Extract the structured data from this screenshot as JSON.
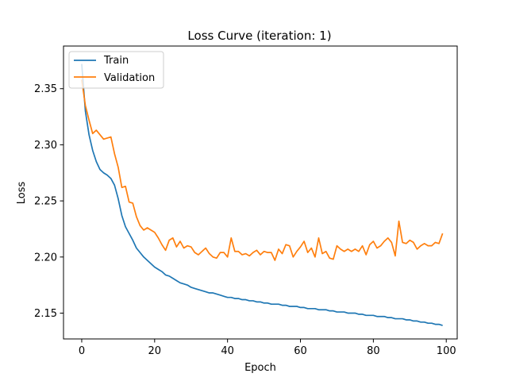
{
  "chart_data": {
    "type": "line",
    "title": "Loss Curve (iteration: 1)",
    "xlabel": "Epoch",
    "ylabel": "Loss",
    "xlim": [
      -5,
      103
    ],
    "ylim": [
      2.127,
      2.388
    ],
    "xticks": [
      0,
      20,
      40,
      60,
      80,
      100
    ],
    "xtick_labels": [
      "0",
      "20",
      "40",
      "60",
      "80",
      "100"
    ],
    "yticks": [
      2.15,
      2.2,
      2.25,
      2.3,
      2.35
    ],
    "ytick_labels": [
      "2.15",
      "2.20",
      "2.25",
      "2.30",
      "2.35"
    ],
    "grid": false,
    "legend_position": "top-left",
    "series": [
      {
        "name": "Train",
        "color": "#1f77b4",
        "values": [
          2.372,
          2.33,
          2.309,
          2.295,
          2.285,
          2.278,
          2.275,
          2.273,
          2.27,
          2.264,
          2.252,
          2.237,
          2.227,
          2.221,
          2.215,
          2.208,
          2.204,
          2.2,
          2.197,
          2.194,
          2.191,
          2.189,
          2.187,
          2.184,
          2.183,
          2.181,
          2.179,
          2.177,
          2.176,
          2.175,
          2.173,
          2.172,
          2.171,
          2.17,
          2.169,
          2.168,
          2.168,
          2.167,
          2.166,
          2.165,
          2.164,
          2.164,
          2.163,
          2.163,
          2.162,
          2.162,
          2.161,
          2.161,
          2.16,
          2.16,
          2.159,
          2.159,
          2.158,
          2.158,
          2.158,
          2.157,
          2.157,
          2.156,
          2.156,
          2.156,
          2.155,
          2.155,
          2.154,
          2.154,
          2.154,
          2.153,
          2.153,
          2.153,
          2.152,
          2.152,
          2.151,
          2.151,
          2.151,
          2.15,
          2.15,
          2.15,
          2.149,
          2.149,
          2.148,
          2.148,
          2.148,
          2.147,
          2.147,
          2.147,
          2.146,
          2.146,
          2.145,
          2.145,
          2.145,
          2.144,
          2.144,
          2.143,
          2.143,
          2.142,
          2.142,
          2.141,
          2.141,
          2.14,
          2.14,
          2.139
        ]
      },
      {
        "name": "Validation",
        "color": "#ff7f0e",
        "values": [
          2.358,
          2.335,
          2.322,
          2.31,
          2.313,
          2.309,
          2.305,
          2.306,
          2.307,
          2.292,
          2.28,
          2.262,
          2.263,
          2.249,
          2.248,
          2.236,
          2.228,
          2.224,
          2.226,
          2.224,
          2.222,
          2.217,
          2.211,
          2.206,
          2.215,
          2.217,
          2.209,
          2.214,
          2.208,
          2.21,
          2.209,
          2.204,
          2.202,
          2.205,
          2.208,
          2.203,
          2.2,
          2.199,
          2.204,
          2.204,
          2.2,
          2.217,
          2.205,
          2.205,
          2.202,
          2.203,
          2.201,
          2.204,
          2.206,
          2.202,
          2.205,
          2.204,
          2.204,
          2.197,
          2.207,
          2.203,
          2.211,
          2.21,
          2.2,
          2.205,
          2.209,
          2.214,
          2.204,
          2.208,
          2.2,
          2.217,
          2.203,
          2.205,
          2.199,
          2.198,
          2.21,
          2.207,
          2.205,
          2.207,
          2.205,
          2.207,
          2.205,
          2.21,
          2.202,
          2.211,
          2.214,
          2.208,
          2.21,
          2.214,
          2.217,
          2.213,
          2.201,
          2.232,
          2.213,
          2.212,
          2.215,
          2.213,
          2.207,
          2.21,
          2.212,
          2.21,
          2.21,
          2.213,
          2.212,
          2.221
        ]
      }
    ]
  }
}
